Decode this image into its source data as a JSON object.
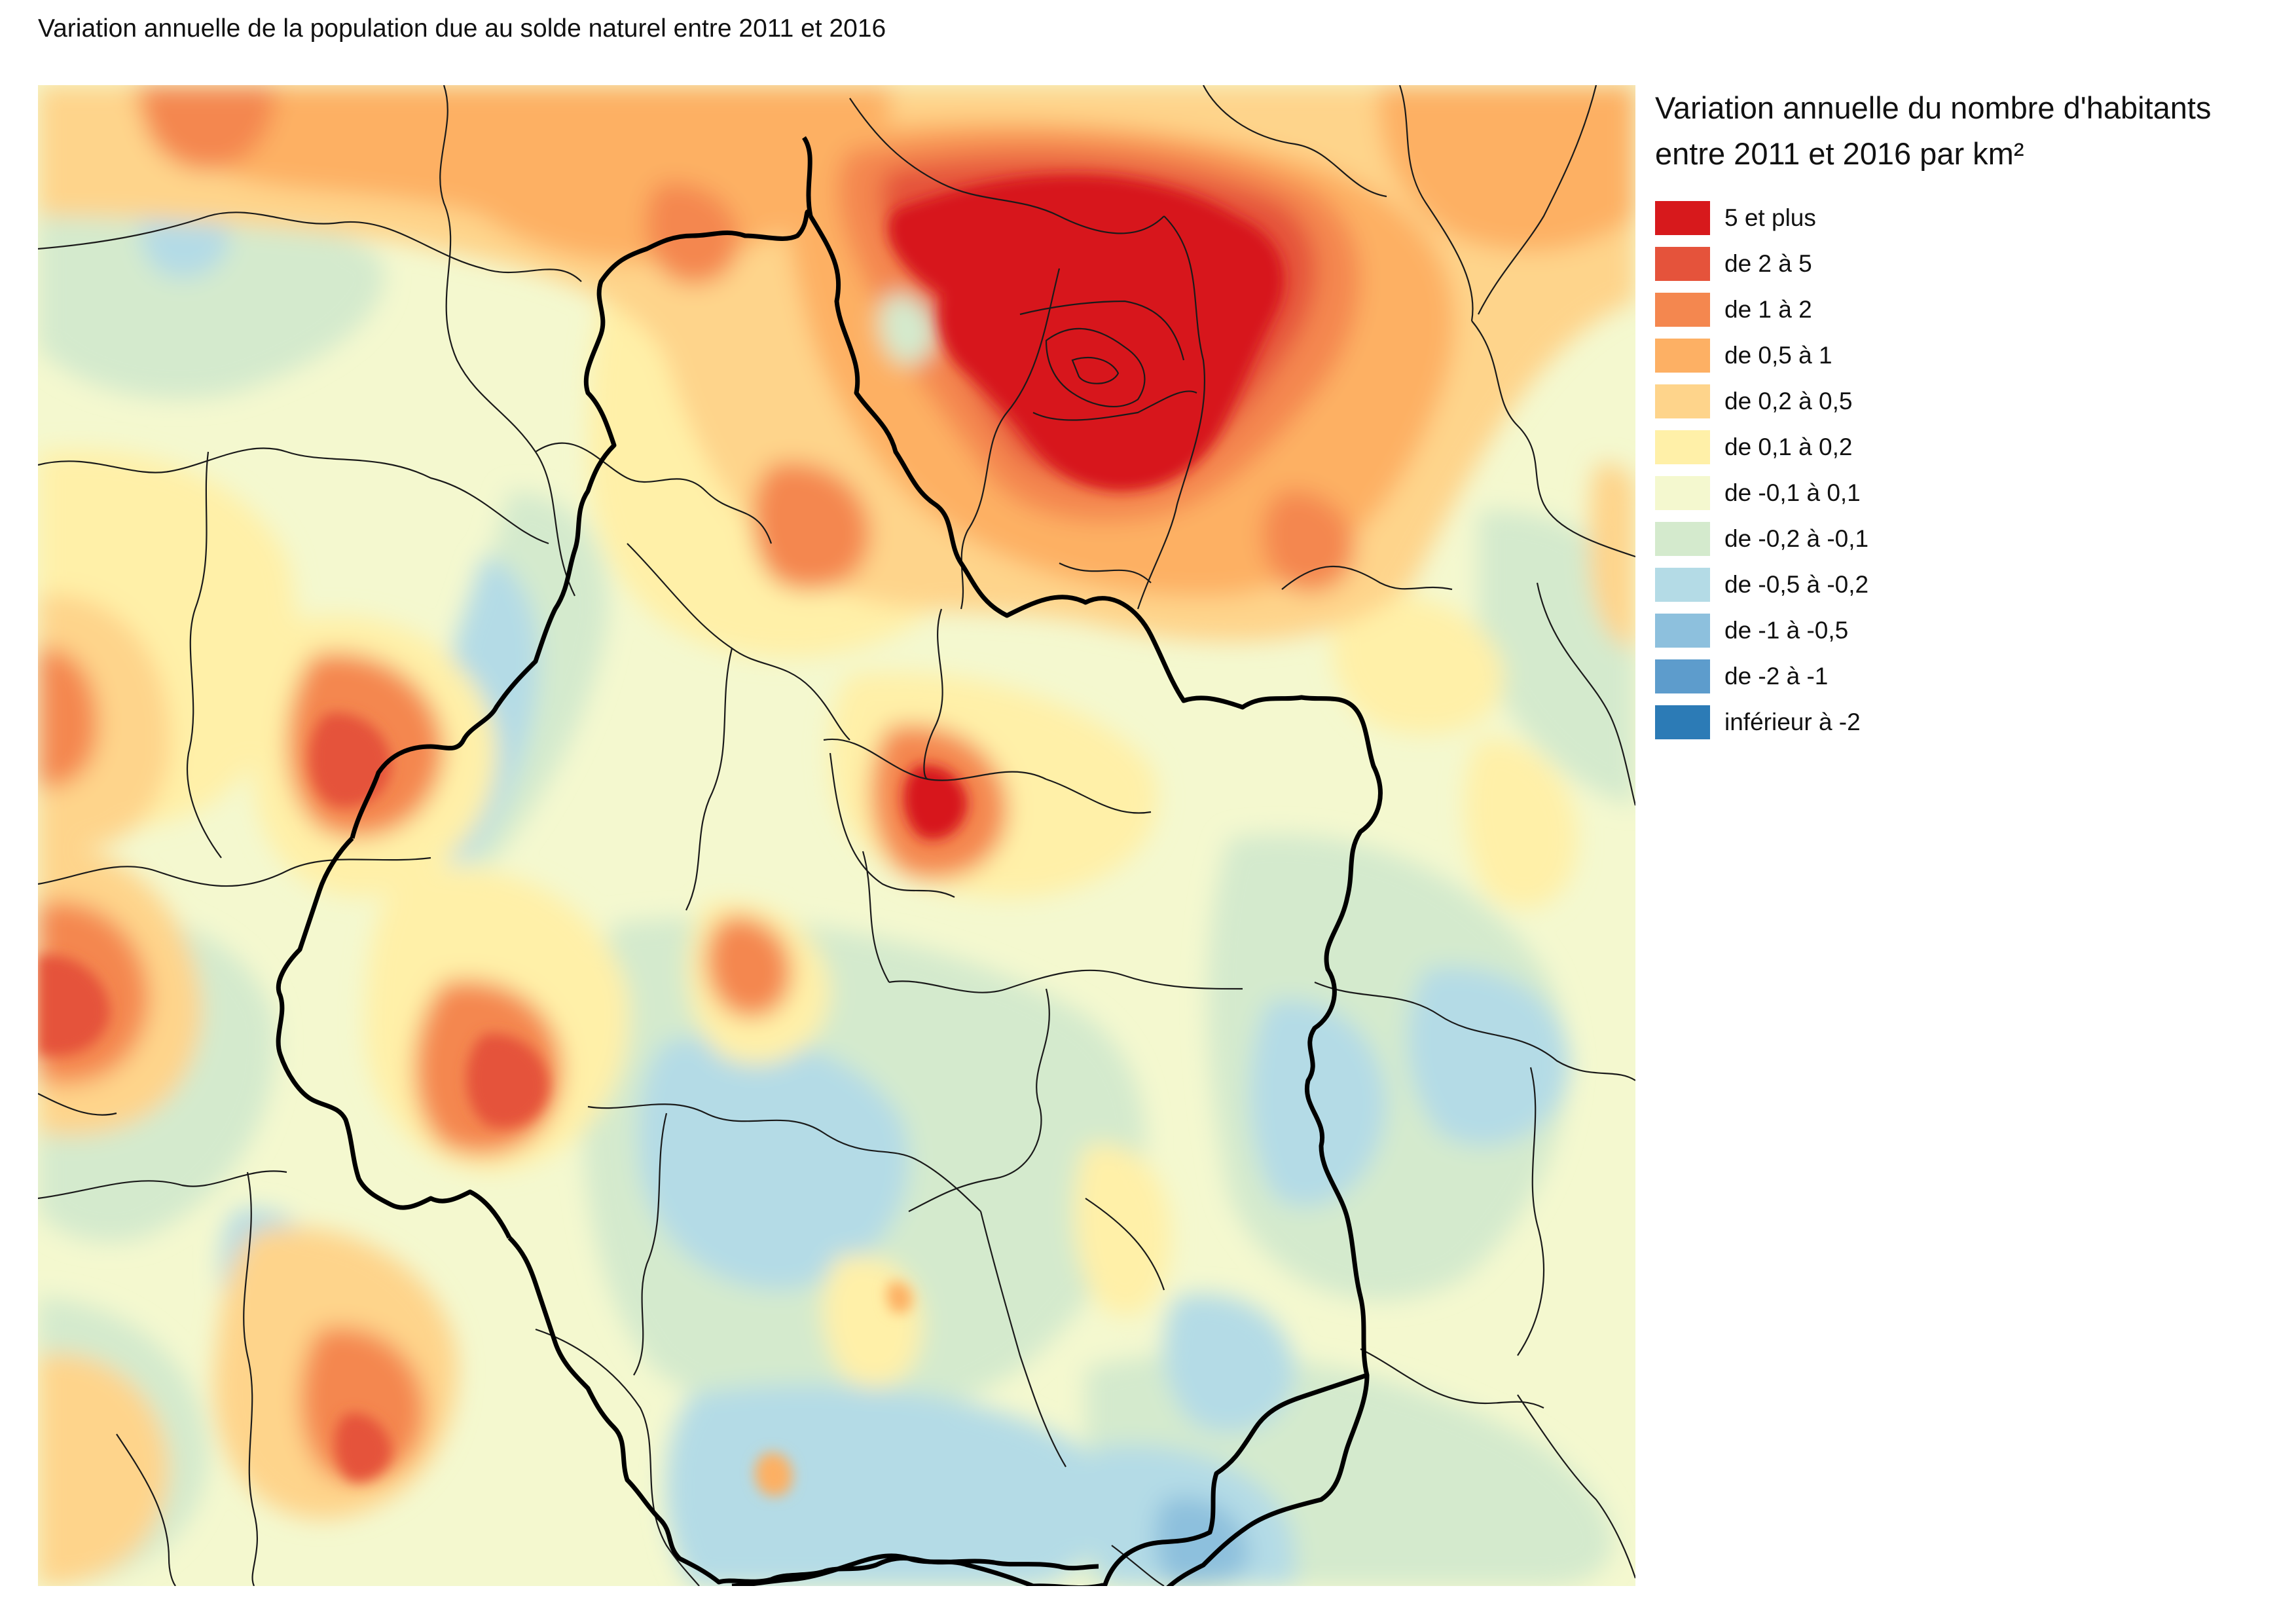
{
  "title": "Variation annuelle de la population due au solde naturel entre 2011 et 2016",
  "legend": {
    "title_line1": "Variation annuelle du nombre d'habitants",
    "title_line2": "entre 2011 et 2016 par km²",
    "classes": [
      {
        "label": "5 et plus",
        "color": "#d7191c"
      },
      {
        "label": "de 2 à 5",
        "color": "#e5533b"
      },
      {
        "label": "de 1 à 2",
        "color": "#f4874f"
      },
      {
        "label": "de 0,5 à 1",
        "color": "#fdb064"
      },
      {
        "label": "de 0,2 à 0,5",
        "color": "#fed48b"
      },
      {
        "label": "de 0,1 à 0,2",
        "color": "#fff0a8"
      },
      {
        "label": "de -0,1 à 0,1",
        "color": "#f4f8cf"
      },
      {
        "label": "de -0,2 à -0,1",
        "color": "#d4eacd"
      },
      {
        "label": "de -0,5 à -0,2",
        "color": "#b4dbe6"
      },
      {
        "label": "de -1 à -0,5",
        "color": "#8dc0dd"
      },
      {
        "label": "de -2 à -1",
        "color": "#5d9ccc"
      },
      {
        "label": "inférieur à -2",
        "color": "#2c7bb6"
      }
    ]
  }
}
